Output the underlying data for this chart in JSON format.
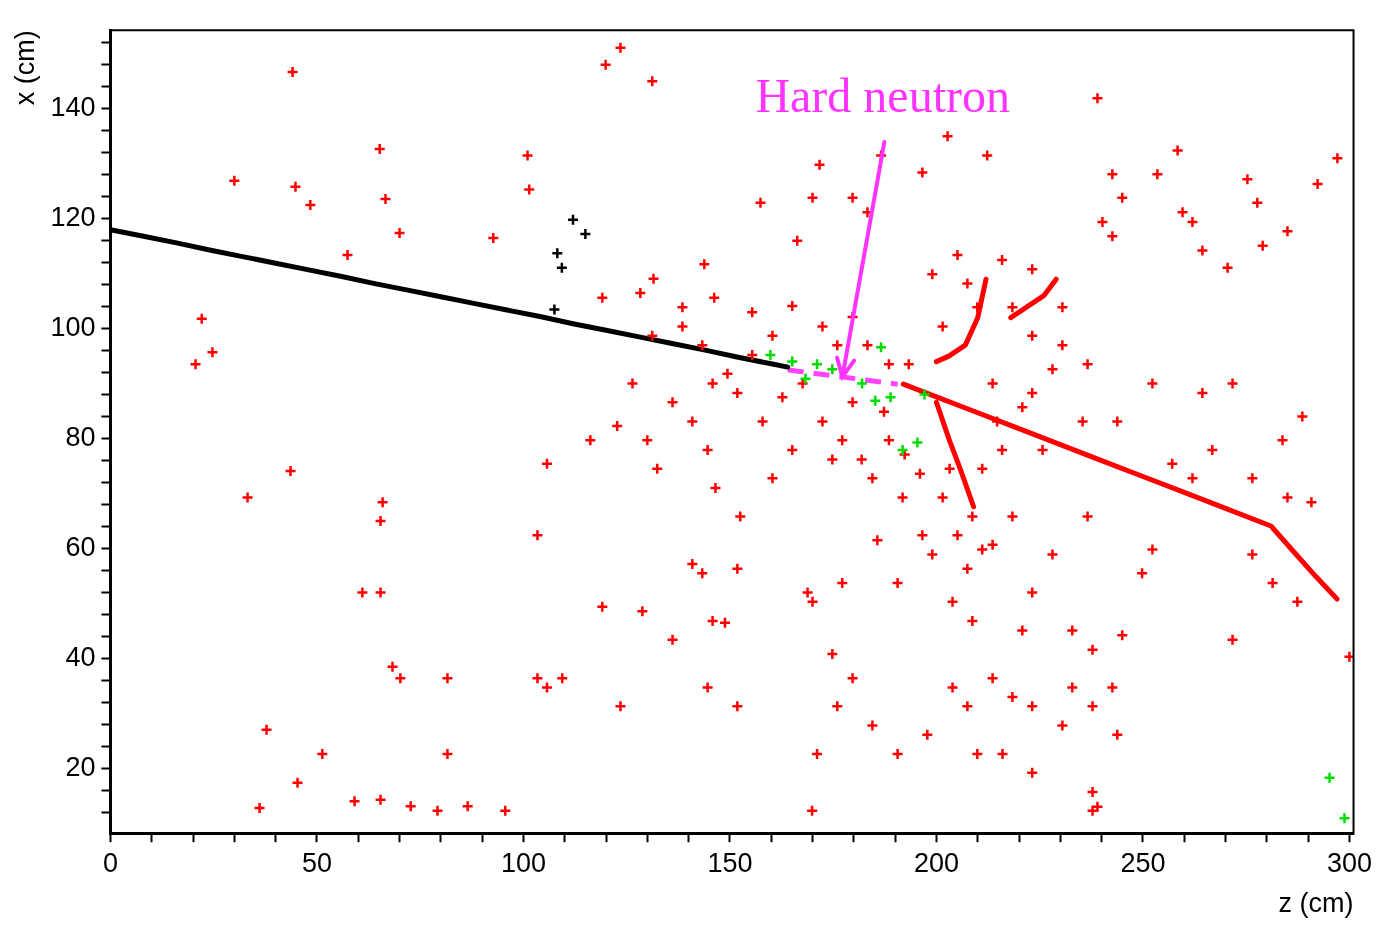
{
  "chart_data": {
    "type": "scatter",
    "xlabel": "z (cm)",
    "ylabel": "x (cm)",
    "xlim": [
      0,
      301
    ],
    "ylim": [
      8.2,
      154.3
    ],
    "xticks": [
      0,
      {
        "value": 10,
        "label": null
      },
      {
        "value": 20,
        "label": null
      },
      {
        "value": 30,
        "label": null
      },
      {
        "value": 40,
        "label": null
      },
      50,
      {
        "value": 60,
        "label": null
      },
      {
        "value": 70,
        "label": null
      },
      {
        "value": 80,
        "label": null
      },
      {
        "value": 90,
        "label": null
      },
      100,
      {
        "value": 110,
        "label": null
      },
      {
        "value": 120,
        "label": null
      },
      {
        "value": 130,
        "label": null
      },
      {
        "value": 140,
        "label": null
      },
      150,
      {
        "value": 160,
        "label": null
      },
      {
        "value": 170,
        "label": null
      },
      {
        "value": 180,
        "label": null
      },
      {
        "value": 190,
        "label": null
      },
      200,
      {
        "value": 210,
        "label": null
      },
      {
        "value": 220,
        "label": null
      },
      {
        "value": 230,
        "label": null
      },
      {
        "value": 240,
        "label": null
      },
      250,
      {
        "value": 260,
        "label": null
      },
      {
        "value": 270,
        "label": null
      },
      {
        "value": 280,
        "label": null
      },
      {
        "value": 290,
        "label": null
      },
      300
    ],
    "yticks": [
      {
        "value": 12,
        "label": null
      },
      {
        "value": 16,
        "label": null
      },
      20,
      {
        "value": 24,
        "label": null
      },
      {
        "value": 28,
        "label": null
      },
      {
        "value": 32,
        "label": null
      },
      {
        "value": 36,
        "label": null
      },
      40,
      {
        "value": 44,
        "label": null
      },
      {
        "value": 48,
        "label": null
      },
      {
        "value": 52,
        "label": null
      },
      {
        "value": 56,
        "label": null
      },
      60,
      {
        "value": 64,
        "label": null
      },
      {
        "value": 68,
        "label": null
      },
      {
        "value": 72,
        "label": null
      },
      {
        "value": 76,
        "label": null
      },
      80,
      {
        "value": 84,
        "label": null
      },
      {
        "value": 88,
        "label": null
      },
      {
        "value": 92,
        "label": null
      },
      {
        "value": 96,
        "label": null
      },
      100,
      {
        "value": 104,
        "label": null
      },
      {
        "value": 108,
        "label": null
      },
      {
        "value": 112,
        "label": null
      },
      {
        "value": 116,
        "label": null
      },
      120,
      {
        "value": 124,
        "label": null
      },
      {
        "value": 128,
        "label": null
      },
      {
        "value": 132,
        "label": null
      },
      {
        "value": 136,
        "label": null
      },
      140,
      {
        "value": 144,
        "label": null
      },
      {
        "value": 148,
        "label": null
      },
      {
        "value": 152,
        "label": null
      }
    ],
    "grid": false,
    "legend": false,
    "marker": "cross",
    "annotations": [
      {
        "text": "Hard neutron",
        "x": 177.3,
        "y": 91.2
      }
    ],
    "series": [
      {
        "type": "line",
        "color": "#000000",
        "marker": "none",
        "x": [
          0,
          8,
          16,
          24,
          32,
          40,
          48,
          56,
          64,
          72,
          80,
          88,
          96,
          104,
          112,
          120,
          128,
          136,
          144,
          152,
          160,
          164
        ],
        "values": [
          118,
          116.8,
          115.6,
          114.3,
          113.1,
          111.9,
          110.7,
          109.5,
          108.2,
          107,
          105.8,
          104.6,
          103.4,
          102.2,
          100.9,
          99.7,
          98.5,
          97.3,
          96.1,
          94.8,
          93.6,
          93
        ]
      },
      {
        "color": "#000000",
        "x": [
          112,
          115,
          108.2,
          109.3,
          107.5
        ],
        "values": [
          119.8,
          117.2,
          113.7,
          111.1,
          103.5
        ]
      },
      {
        "type": "line",
        "color": "#ff44ff",
        "marker": "none",
        "line_style": "dashed",
        "x": [
          164,
          190.6
        ],
        "values": [
          92.5,
          89.9
        ]
      },
      {
        "type": "line",
        "color": "#ff0000",
        "marker": "none",
        "x": [
          192,
          200,
          210,
          220,
          230,
          240,
          250,
          260,
          270,
          281,
          287,
          292,
          297
        ],
        "values": [
          89.9,
          87.6,
          84.7,
          81.8,
          78.9,
          76,
          73.1,
          70.2,
          67.3,
          64.1,
          59,
          54.8,
          50.8
        ]
      },
      {
        "type": "line",
        "color": "#ff0000",
        "marker": "none",
        "x": [
          200,
          203,
          206,
          209
        ],
        "values": [
          86.6,
          80,
          74,
          67.6
        ]
      },
      {
        "type": "line",
        "color": "#ff0000",
        "marker": "none",
        "x": [
          212,
          210,
          207,
          203,
          200
        ],
        "values": [
          109,
          102,
          97,
          95,
          94
        ]
      },
      {
        "type": "line",
        "color": "#ff0000",
        "marker": "none",
        "x": [
          229,
          226,
          222,
          218
        ],
        "values": [
          109,
          106,
          104,
          102
        ]
      },
      {
        "color": "#00dd00",
        "x": [
          159.8,
          165.1,
          171.1,
          168.3,
          174.8,
          186.6,
          182,
          185.2,
          188.9,
          197.1,
          195.4,
          191.8,
          295.2,
          298.8
        ],
        "values": [
          95.2,
          94,
          93.5,
          90.9,
          92.6,
          96.6,
          90,
          86.9,
          87.5,
          88,
          79.3,
          77.9,
          18.3,
          10.9
        ]
      },
      {
        "color": "#ff0000",
        "x": [
          44.1,
          119.9,
          123.5,
          131.2,
          30,
          44.8,
          48.4,
          65.2,
          66.6,
          70,
          57.4,
          92.7,
          101.4,
          101,
          22.1,
          20.6,
          24.7,
          43.6,
          33.2,
          65.9,
          65.4,
          61,
          65.4,
          68.3,
          70.2,
          37.8,
          36.1,
          45.3,
          51.3,
          59.1,
          65.4,
          72.7,
          81.6,
          81.6,
          79.2,
          86.5,
          95.6,
          103.4,
          105.7,
          109.4,
          103.4,
          105.7,
          116.2,
          122.7,
          130,
          132.4,
          119.1,
          123.5,
          128.8,
          136.1,
          140.9,
          143.3,
          144.6,
          146.5,
          152.5,
          145.8,
          148.8,
          144.6,
          151.8,
          151.8,
          128.3,
          131.5,
          138.5,
          143.8,
          146.2,
          155.4,
          157.4,
          166.3,
          170,
          171.7,
          179.7,
          183.3,
          186.6,
          196.6,
          202.7,
          212.3,
          239,
          242.6,
          245,
          240.2,
          242.6,
          253.5,
          258.4,
          259.6,
          262,
          264.4,
          270.5,
          275.3,
          277.7,
          279,
          285,
          292.3,
          297.1,
          199,
          207.5,
          223.2,
          230.5,
          236.6,
          220.8,
          225.7,
          235.4,
          243.8,
          252.3,
          264.4,
          271.7,
          257.1,
          262,
          266.8,
          276.5,
          283.8,
          288.6,
          285,
          290.8,
          276.5,
          281.4,
          287.4,
          252.3,
          249.8,
          236.6,
          228.1,
          223.2,
          220.8,
          232.9,
          237.8,
          245,
          271.7,
          300,
          213.6,
          218.4,
          223.2,
          232.9,
          237.8,
          242.6,
          243.8,
          207.5,
          209.9,
          216,
          223.2,
          230.5,
          237.8,
          237.8,
          239,
          203.9,
          197.8,
          190.6,
          184.5,
          179.7,
          174.8,
          176,
          171.1,
          169.9,
          168.8,
          170,
          177.2,
          185.7,
          190.6,
          203.9,
          208.7,
          207.5,
          213.6,
          218.4,
          201.5,
          191.8,
          184.5,
          174.8,
          165.1,
          160.3,
          157.9,
          151.8,
          149.4,
          162.7,
          167.6,
          172.4,
          177.2,
          181.9,
          179.7,
          187.3,
          188.5,
          192.3,
          196,
          203.2,
          211.1,
          215.9,
          214.7,
          208.7,
          205.1,
          211.1,
          199,
          196.6,
          160.3,
          155.4,
          165.1,
          172.4,
          176,
          183.3,
          179.7,
          188.5,
          193.3,
          201.5,
          209.9,
          218.4,
          213.6,
          223.2,
          223.2,
          215.9,
          205.1,
          230.5,
          228.1,
          136.1,
          140.9,
          145.8,
          126.4,
          138.5,
          143.3,
          119.1,
          131.2
        ],
        "values": [
          146.7,
          148,
          151.1,
          145,
          126.9,
          125.8,
          122.5,
          132.7,
          123.6,
          117.4,
          113.4,
          116.5,
          125.3,
          131.5,
          101.8,
          93.5,
          95.7,
          74.1,
          69.3,
          68.4,
          65,
          52,
          52,
          38.5,
          36.4,
          27,
          12.8,
          17.4,
          22.6,
          14,
          14.3,
          13.1,
          36.4,
          22.6,
          12.3,
          13.1,
          12.3,
          36.4,
          34.7,
          36.4,
          62.4,
          75.4,
          79.7,
          82.3,
          79.7,
          74.5,
          49.4,
          31.3,
          48.6,
          43.4,
          57.2,
          55.5,
          77.9,
          71,
          65.8,
          46.8,
          46.5,
          34.7,
          31.3,
          56.3,
          106.5,
          109.1,
          103.9,
          111.7,
          105.6,
          103,
          122.9,
          116,
          123.8,
          129.8,
          123.8,
          121.2,
          131.5,
          128.4,
          135,
          131.5,
          141.9,
          128.1,
          123.8,
          119.4,
          116.8,
          128.1,
          132.4,
          121.2,
          119.4,
          114.2,
          111.1,
          127.2,
          122.9,
          115.1,
          117.7,
          126.3,
          131,
          109.9,
          108.2,
          98.7,
          97,
          93.5,
          85.7,
          77.9,
          83.1,
          83.1,
          90,
          88.3,
          90,
          75.4,
          72.8,
          77.9,
          72.8,
          79.7,
          84,
          69.3,
          68.4,
          58.9,
          53.7,
          50.3,
          59.8,
          55.5,
          65.8,
          58.9,
          52,
          45.1,
          45.1,
          41.6,
          44.2,
          43.4,
          40.3,
          36.4,
          33,
          31.3,
          34.7,
          31.3,
          34.7,
          26.1,
          31.3,
          22.6,
          22.6,
          19.2,
          27.8,
          15.7,
          12.3,
          13,
          34.7,
          26.1,
          22.6,
          27.8,
          36.4,
          40.8,
          31.3,
          22.6,
          12.3,
          52,
          50.3,
          53.7,
          61.5,
          53.7,
          50.3,
          46.8,
          56.3,
          60.7,
          65.8,
          69.3,
          69.3,
          72.8,
          76.2,
          77.9,
          72.8,
          83.1,
          88.3,
          91.8,
          87.5,
          90,
          83.1,
          79.7,
          76.2,
          86.6,
          84.9,
          79.7,
          77.1,
          73.6,
          74.5,
          74.5,
          77.9,
          83.1,
          65.8,
          62.4,
          59.8,
          58.9,
          62.4,
          98.7,
          95.2,
          104.1,
          100.4,
          97,
          97,
          102.1,
          93.5,
          93.5,
          100.4,
          103.9,
          103.9,
          90,
          88.3,
          110.8,
          112.5,
          113.4,
          103.9,
          92.6,
          86.6,
          83.1,
          90,
          90,
          100.4,
          97,
          105.6,
          98.7
        ]
      }
    ]
  }
}
